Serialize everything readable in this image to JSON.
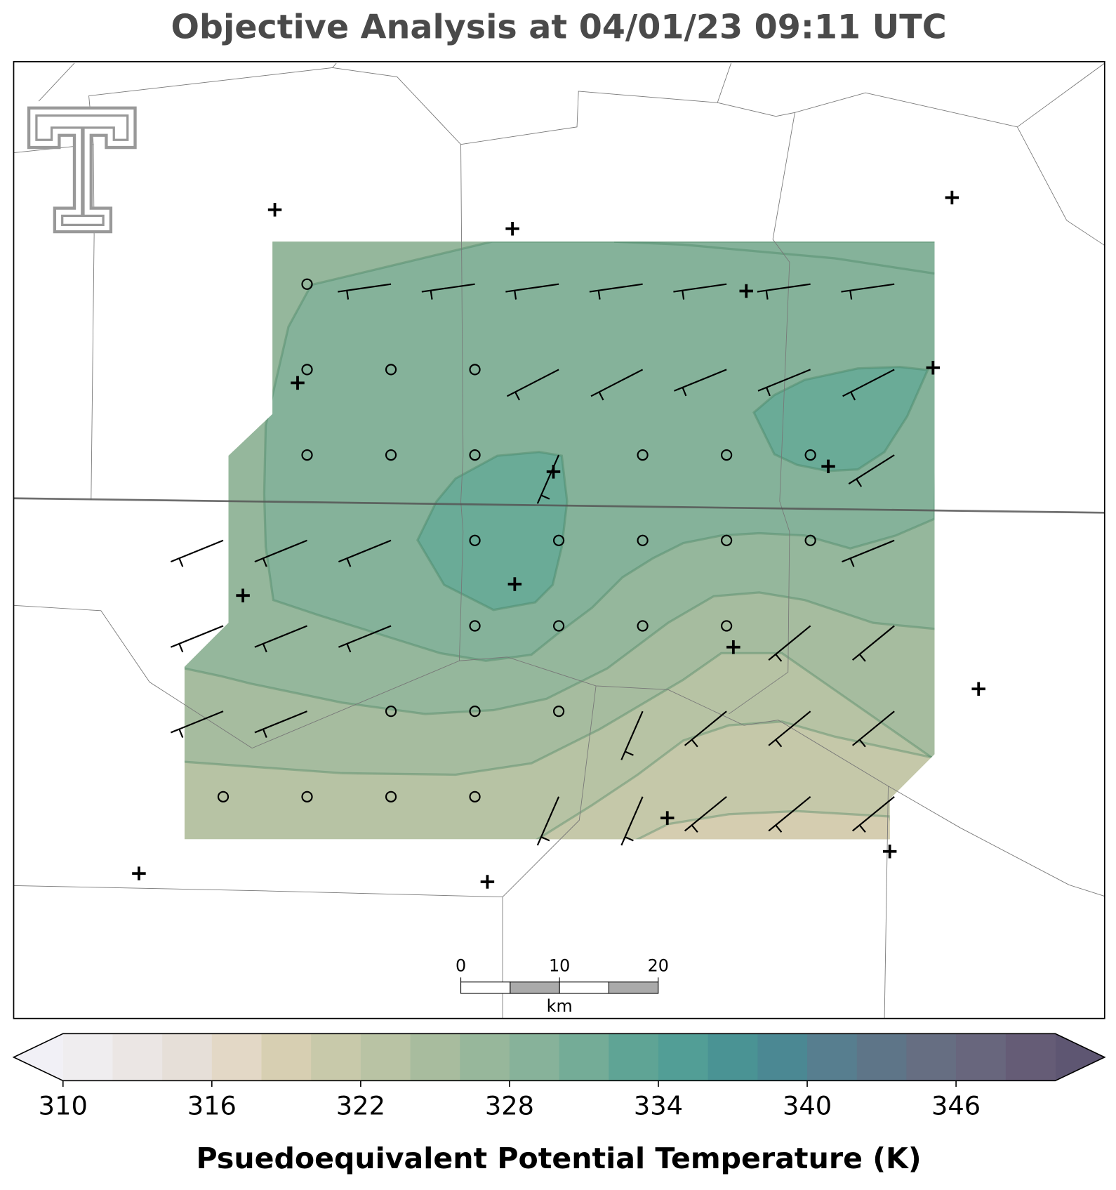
{
  "title": "Objective Analysis at 04/01/23 09:11 UTC",
  "colorbar": {
    "label": "Psuedoequivalent Potential Temperature (K)",
    "range": [
      310,
      350
    ],
    "ticks": [
      310,
      316,
      322,
      328,
      334,
      340,
      346
    ],
    "colors": [
      "#efedef",
      "#ebe6e4",
      "#e6dfd8",
      "#e3d8c6",
      "#d7cfb2",
      "#c8c9aa",
      "#b9c3a4",
      "#a8bc9e",
      "#97b79b",
      "#87b29a",
      "#74ac97",
      "#5fa495",
      "#529e96",
      "#4a9394",
      "#4b8893",
      "#577e8f",
      "#5e7588",
      "#666e82",
      "#68667d",
      "#655c76"
    ],
    "under_color": "#f1f0f6",
    "over_color": "#5e5672"
  },
  "scale_bar": {
    "ticks": [
      0,
      10,
      20
    ],
    "unit": "km"
  }
}
